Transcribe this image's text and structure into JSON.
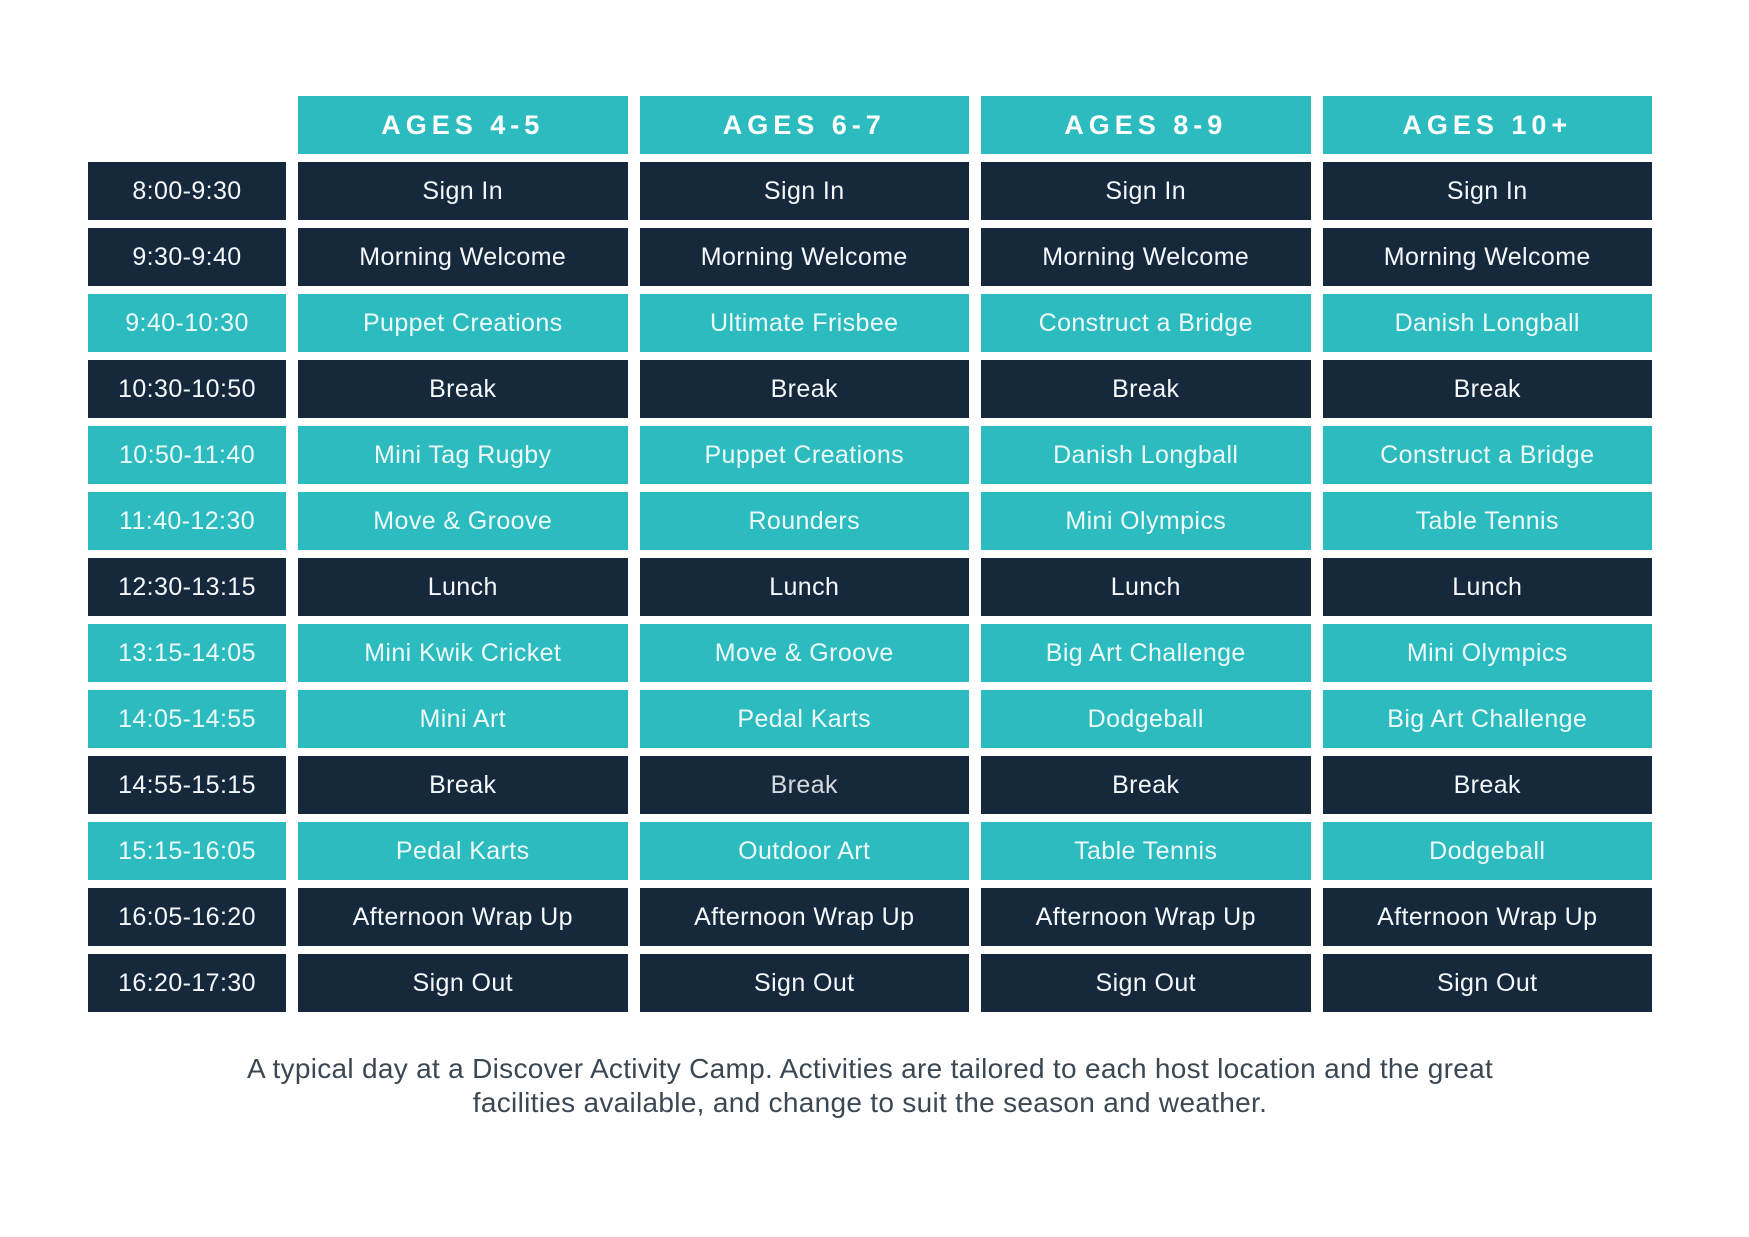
{
  "colors": {
    "teal": "#2cbcc0",
    "navy": "#16293c",
    "background": "#ffffff",
    "caption_text": "#3b4854",
    "muted_cell_text": "#8fd9db"
  },
  "table": {
    "columns": [
      "AGES 4-5",
      "AGES 6-7",
      "AGES 8-9",
      "AGES 10+"
    ],
    "rows": [
      {
        "time": "8:00-9:30",
        "tone": "dark",
        "cells": [
          {
            "label": "Sign In"
          },
          {
            "label": "Sign In"
          },
          {
            "label": "Sign In"
          },
          {
            "label": "Sign In"
          }
        ]
      },
      {
        "time": "9:30-9:40",
        "tone": "dark",
        "cells": [
          {
            "label": "Morning Welcome"
          },
          {
            "label": "Morning Welcome"
          },
          {
            "label": "Morning Welcome"
          },
          {
            "label": "Morning Welcome"
          }
        ]
      },
      {
        "time": "9:40-10:30",
        "tone": "teal",
        "cells": [
          {
            "label": "Puppet Creations"
          },
          {
            "label": "Ultimate Frisbee"
          },
          {
            "label": "Construct a Bridge"
          },
          {
            "label": "Danish Longball"
          }
        ]
      },
      {
        "time": "10:30-10:50",
        "tone": "dark",
        "cells": [
          {
            "label": "Break"
          },
          {
            "label": "Break"
          },
          {
            "label": "Break"
          },
          {
            "label": "Break"
          }
        ]
      },
      {
        "time": "10:50-11:40",
        "tone": "teal",
        "cells": [
          {
            "label": "Mini Tag Rugby"
          },
          {
            "label": "Puppet Creations"
          },
          {
            "label": "Danish Longball"
          },
          {
            "label": "Construct a Bridge"
          }
        ]
      },
      {
        "time": "11:40-12:30",
        "tone": "teal",
        "cells": [
          {
            "label": "Move & Groove"
          },
          {
            "label": "Rounders"
          },
          {
            "label": "Mini Olympics"
          },
          {
            "label": "Table Tennis"
          }
        ]
      },
      {
        "time": "12:30-13:15",
        "tone": "dark",
        "cells": [
          {
            "label": "Lunch"
          },
          {
            "label": "Lunch"
          },
          {
            "label": "Lunch"
          },
          {
            "label": "Lunch"
          }
        ]
      },
      {
        "time": "13:15-14:05",
        "tone": "teal",
        "cells": [
          {
            "label": "Mini Kwik Cricket"
          },
          {
            "label": "Move & Groove"
          },
          {
            "label": "Big Art Challenge"
          },
          {
            "label": "Mini Olympics"
          }
        ]
      },
      {
        "time": "14:05-14:55",
        "tone": "teal",
        "cells": [
          {
            "label": "Mini Art"
          },
          {
            "label": "Pedal Karts"
          },
          {
            "label": "Dodgeball",
            "variant": "muted"
          },
          {
            "label": "Big Art Challenge"
          }
        ]
      },
      {
        "time": "14:55-15:15",
        "tone": "dark",
        "cells": [
          {
            "label": "Break"
          },
          {
            "label": "Break",
            "variant": "light"
          },
          {
            "label": "Break"
          },
          {
            "label": "Break"
          }
        ]
      },
      {
        "time": "15:15-16:05",
        "tone": "teal",
        "cells": [
          {
            "label": "Pedal Karts"
          },
          {
            "label": "Outdoor Art"
          },
          {
            "label": "Table Tennis"
          },
          {
            "label": "Dodgeball"
          }
        ]
      },
      {
        "time": "16:05-16:20",
        "tone": "dark",
        "cells": [
          {
            "label": "Afternoon Wrap Up"
          },
          {
            "label": "Afternoon Wrap Up"
          },
          {
            "label": "Afternoon Wrap Up"
          },
          {
            "label": "Afternoon Wrap Up"
          }
        ]
      },
      {
        "time": "16:20-17:30",
        "tone": "dark",
        "cells": [
          {
            "label": "Sign Out"
          },
          {
            "label": "Sign Out"
          },
          {
            "label": "Sign Out"
          },
          {
            "label": "Sign Out"
          }
        ]
      }
    ]
  },
  "caption": {
    "line1": "A typical day at a Discover Activity Camp. Activities are tailored to each host location and the great",
    "line2": "facilities available,  and change to suit the season and weather."
  }
}
